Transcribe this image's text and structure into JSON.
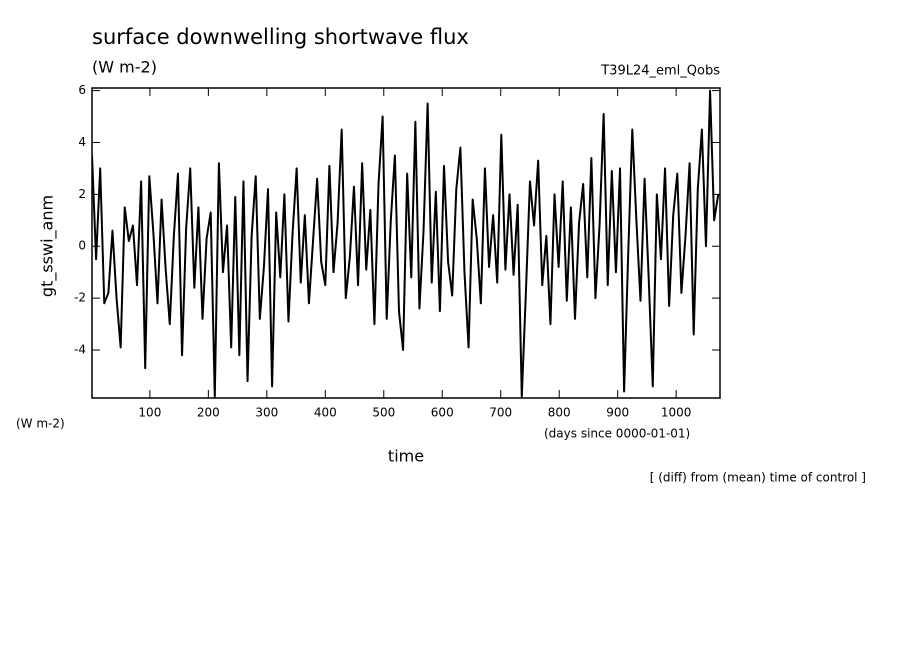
{
  "chart_data": {
    "type": "line",
    "title": "surface downwelling shortwave flux",
    "units_top": "(W m-2)",
    "run_label": "T39L24_eml_Qobs",
    "ylabel": "gt_sswi_anm",
    "units_bottom": "(W m-2)",
    "xlabel": "time",
    "x_units": "(days since 0000-01-01)",
    "note": "[ (diff) from (mean) time of control ]",
    "color": "#000000",
    "xlim": [
      1,
      1075
    ],
    "ylim": [
      -5.85,
      6.1
    ],
    "xticks": [
      100,
      200,
      300,
      400,
      500,
      600,
      700,
      800,
      900,
      1000
    ],
    "yticks": [
      -4,
      -2,
      0,
      2,
      4,
      6
    ],
    "series": [
      {
        "x": [
          1,
          8,
          15,
          22,
          29,
          36,
          43,
          50,
          57,
          64,
          71,
          78,
          85,
          92,
          99,
          106,
          113,
          120,
          127,
          134,
          141,
          148,
          155,
          162,
          169,
          176,
          183,
          190,
          197,
          204,
          211,
          218,
          225,
          232,
          239,
          246,
          253,
          260,
          267,
          274,
          281,
          288,
          295,
          302,
          309,
          316,
          323,
          330,
          337,
          344,
          351,
          358,
          365,
          372,
          379,
          386,
          393,
          400,
          407,
          414,
          421,
          428,
          435,
          442,
          449,
          456,
          463,
          470,
          477,
          484,
          491,
          498,
          505,
          512,
          519,
          526,
          533,
          540,
          547,
          554,
          561,
          568,
          575,
          582,
          589,
          596,
          603,
          610,
          617,
          624,
          631,
          638,
          645,
          652,
          659,
          666,
          673,
          680,
          687,
          694,
          701,
          708,
          715,
          722,
          729,
          736,
          743,
          750,
          757,
          764,
          771,
          778,
          785,
          792,
          799,
          806,
          813,
          820,
          827,
          834,
          841,
          848,
          855,
          862,
          869,
          876,
          883,
          890,
          897,
          904,
          911,
          918,
          925,
          932,
          939,
          946,
          953,
          960,
          967,
          974,
          981,
          988,
          995,
          1002,
          1009,
          1016,
          1023,
          1030,
          1037,
          1044,
          1051,
          1058,
          1065,
          1072
        ],
        "values": [
          3.5,
          -0.5,
          3.0,
          -2.2,
          -1.8,
          0.6,
          -2.0,
          -3.9,
          1.5,
          0.2,
          0.8,
          -1.5,
          2.5,
          -4.7,
          2.7,
          0.5,
          -2.2,
          1.8,
          -0.9,
          -3.0,
          0.4,
          2.8,
          -4.2,
          0.7,
          3.0,
          -1.6,
          1.5,
          -2.8,
          0.3,
          1.3,
          -5.8,
          3.2,
          -1.0,
          0.8,
          -3.9,
          1.9,
          -4.2,
          2.5,
          -5.2,
          0.4,
          2.7,
          -2.8,
          -0.8,
          2.2,
          -5.4,
          1.3,
          -1.2,
          2.0,
          -2.9,
          0.5,
          3.0,
          -1.4,
          1.2,
          -2.2,
          0.2,
          2.6,
          -0.6,
          -1.5,
          3.1,
          -1.0,
          0.9,
          4.5,
          -2.0,
          -0.4,
          2.3,
          -1.5,
          3.2,
          -0.9,
          1.4,
          -3.0,
          2.4,
          5.0,
          -2.8,
          1.0,
          3.5,
          -2.5,
          -4.0,
          2.8,
          -1.2,
          4.8,
          -2.4,
          0.6,
          5.5,
          -1.4,
          2.1,
          -2.5,
          3.1,
          -0.6,
          -1.9,
          2.2,
          3.8,
          -1.0,
          -3.9,
          1.8,
          0.3,
          -2.2,
          3.0,
          -0.8,
          1.2,
          -1.4,
          4.3,
          -0.9,
          2.0,
          -1.1,
          1.6,
          -5.8,
          -1.8,
          2.5,
          0.8,
          3.3,
          -1.5,
          0.4,
          -3.0,
          2.0,
          -0.8,
          2.5,
          -2.1,
          1.5,
          -2.8,
          0.9,
          2.4,
          -1.2,
          3.4,
          -2.0,
          0.8,
          5.1,
          -1.5,
          2.9,
          -1.0,
          3.0,
          -5.6,
          -0.3,
          4.5,
          1.0,
          -2.1,
          2.6,
          -1.2,
          -5.4,
          2.0,
          -0.5,
          3.0,
          -2.3,
          1.2,
          2.8,
          -1.8,
          0.4,
          3.2,
          -3.4,
          2.2,
          4.5,
          0.0,
          6.0,
          1.0,
          2.0
        ]
      }
    ]
  }
}
